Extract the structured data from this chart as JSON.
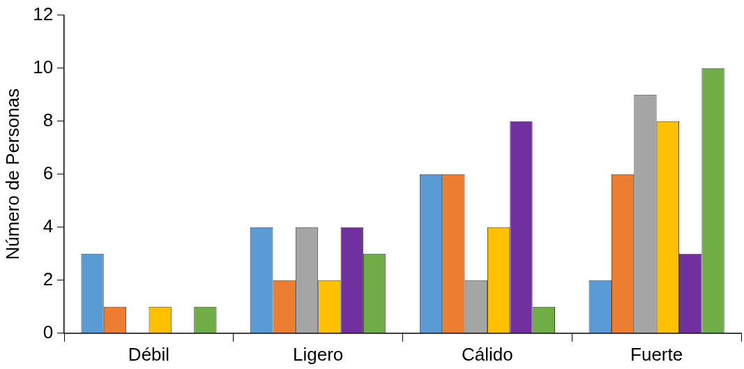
{
  "chart_data": {
    "type": "bar",
    "ylabel": "Número de Personas",
    "categories": [
      "Débil",
      "Ligero",
      "Cálido",
      "Fuerte"
    ],
    "series": [
      {
        "color": "#5b9bd5",
        "values": [
          3,
          4,
          6,
          2
        ]
      },
      {
        "color": "#ed7d31",
        "values": [
          1,
          2,
          6,
          6
        ]
      },
      {
        "color": "#a5a5a5",
        "values": [
          0,
          4,
          2,
          9
        ]
      },
      {
        "color": "#ffc000",
        "values": [
          1,
          2,
          4,
          8
        ]
      },
      {
        "color": "#7030a0",
        "values": [
          0,
          4,
          8,
          3
        ]
      },
      {
        "color": "#70ad47",
        "values": [
          1,
          3,
          1,
          10
        ]
      }
    ],
    "ylim": [
      0,
      12
    ],
    "yticks": [
      0,
      2,
      4,
      6,
      8,
      10,
      12
    ],
    "grid": false,
    "legend": false
  }
}
